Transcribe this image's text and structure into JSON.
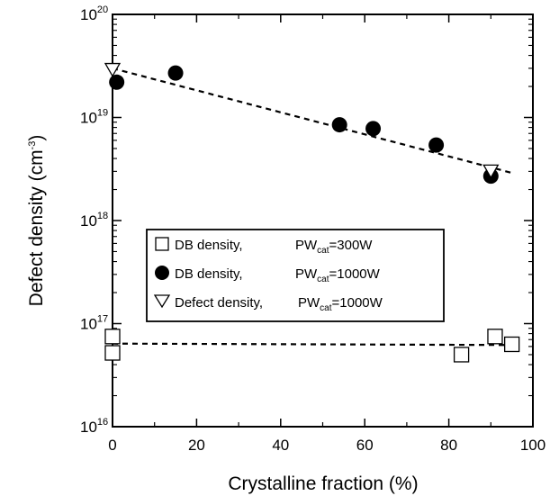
{
  "chart_data": {
    "type": "scatter",
    "xlabel": "Crystalline fraction  (%)",
    "ylabel": "Defect density  (cm",
    "ylabel_sup": "-3",
    "ylabel_close": ")",
    "xlim": [
      0,
      100
    ],
    "ylim": [
      1e+16,
      1e+20
    ],
    "yscale": "log",
    "x_ticks": [
      0,
      20,
      40,
      60,
      80,
      100
    ],
    "x_tick_labels": [
      "0",
      "20",
      "40",
      "60",
      "80",
      "100"
    ],
    "y_ticks": [
      1e+16,
      1e+17,
      1e+18,
      1e+19,
      1e+20
    ],
    "y_tick_base": "10",
    "y_tick_exps": [
      "16",
      "17",
      "18",
      "19",
      "20"
    ],
    "grid": false,
    "legend_position": "center-left",
    "series": [
      {
        "marker": "open-square",
        "legend_prefix": "DB density,",
        "legend_pw": "PW",
        "legend_sub": "cat",
        "legend_value": "=300W",
        "x": [
          0,
          0,
          83,
          91,
          95
        ],
        "y": [
          7.5e+16,
          5.2e+16,
          5e+16,
          7.5e+16,
          6.3e+16
        ]
      },
      {
        "marker": "filled-circle",
        "legend_prefix": "DB density,",
        "legend_pw": "PW",
        "legend_sub": "cat",
        "legend_value": "=1000W",
        "x": [
          1,
          15,
          54,
          62,
          77,
          90
        ],
        "y": [
          2.2e+19,
          2.7e+19,
          8.5e+18,
          7.8e+18,
          5.4e+18,
          2.7e+18
        ]
      },
      {
        "marker": "open-down-triangle",
        "legend_prefix": "Defect density,",
        "legend_pw": "PW",
        "legend_sub": "cat",
        "legend_value": "=1000W",
        "x": [
          0,
          90
        ],
        "y": [
          2.9e+19,
          3e+18
        ]
      }
    ],
    "fit_lines": [
      {
        "style": "dashed",
        "x": [
          0,
          95
        ],
        "y": [
          3e+19,
          2.9e+18
        ]
      },
      {
        "style": "dashed",
        "x": [
          0,
          95
        ],
        "y": [
          6.4e+16,
          6.2e+16
        ]
      }
    ]
  }
}
